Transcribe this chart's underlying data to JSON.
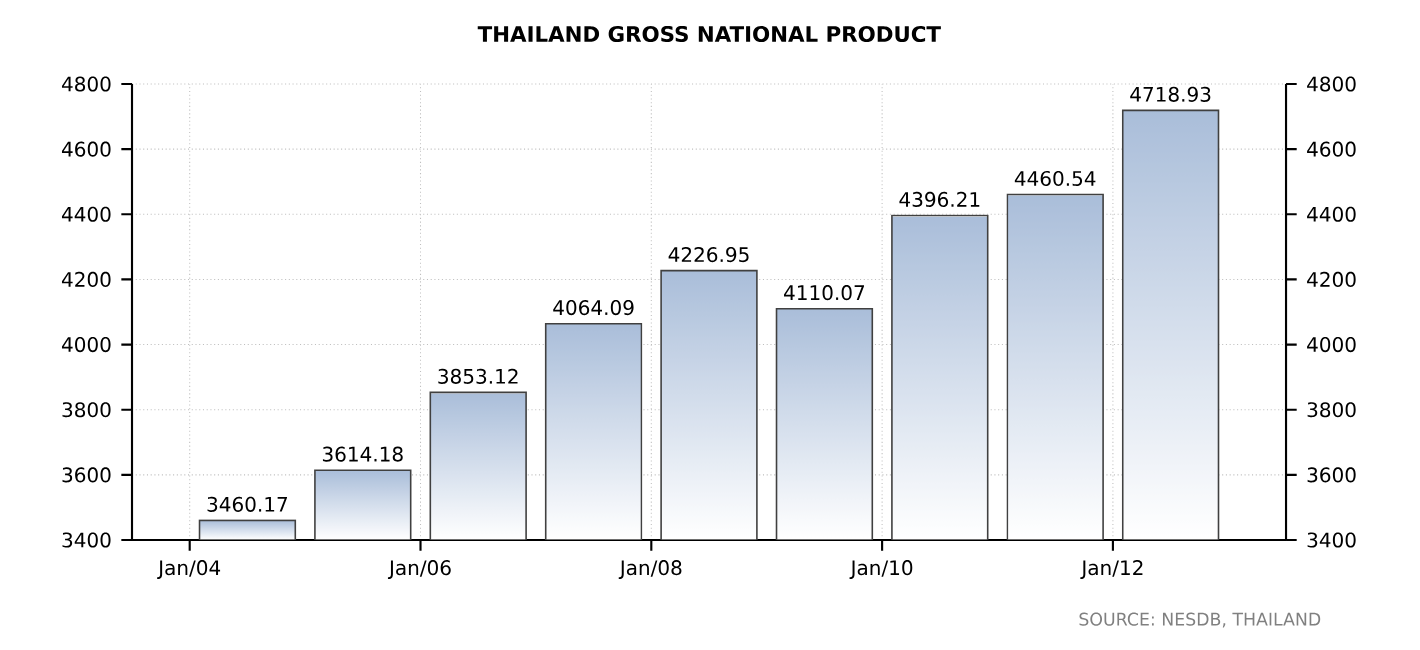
{
  "chart_data": {
    "type": "bar",
    "title": "THAILAND GROSS NATIONAL PRODUCT",
    "x": [
      "2004-07",
      "2005-07",
      "2006-07",
      "2007-07",
      "2008-07",
      "2009-07",
      "2010-07",
      "2011-07",
      "2012-07"
    ],
    "values": [
      3460.17,
      3614.18,
      3853.12,
      4064.09,
      4226.95,
      4110.07,
      4396.21,
      4460.54,
      4718.93
    ],
    "color": "#a9bdd9",
    "xlim": [
      "2003-07",
      "2013-07"
    ],
    "xticks": [
      {
        "value": "2004",
        "label": "Jan/04"
      },
      {
        "value": "2006",
        "label": "Jan/06"
      },
      {
        "value": "2008",
        "label": "Jan/08"
      },
      {
        "value": "2010",
        "label": "Jan/10"
      },
      {
        "value": "2012",
        "label": "Jan/12"
      }
    ],
    "ylim": [
      3400,
      4800
    ],
    "yticks": [
      3400,
      3600,
      3800,
      4000,
      4200,
      4400,
      4600,
      4800
    ],
    "y2lim": [
      3400,
      4800
    ],
    "y2ticks": [
      3400,
      3600,
      3800,
      4000,
      4200,
      4400,
      4600,
      4800
    ],
    "grid": true,
    "data_labels": true,
    "annotations": [
      "SOURCE: NESDB, THAILAND"
    ]
  }
}
